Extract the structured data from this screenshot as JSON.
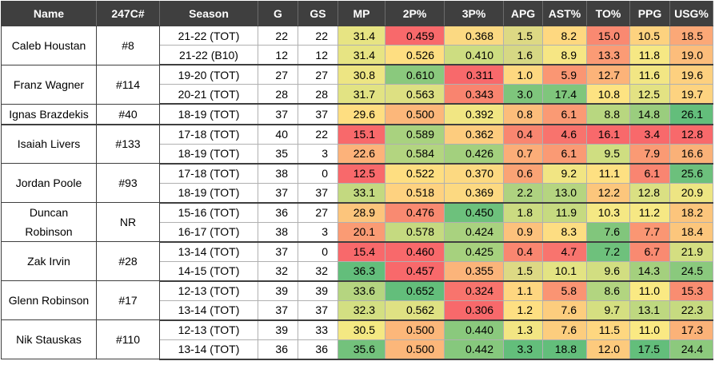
{
  "columns": [
    "Name",
    "247C#",
    "Season",
    "G",
    "GS",
    "MP",
    "2P%",
    "3P%",
    "APG",
    "AST%",
    "TO%",
    "PPG",
    "USG%"
  ],
  "players": [
    {
      "name": "Caleb Houstan",
      "rank": "#8",
      "seasons": [
        {
          "season": "21-22 (TOT)",
          "g": "22",
          "gs": "22",
          "mp": "31.4",
          "p2": "0.459",
          "p3": "0.368",
          "apg": "1.5",
          "ast": "8.2",
          "to": "15.0",
          "ppg": "10.5",
          "usg": "18.5",
          "colors": {
            "mp": "#e7e483",
            "p2": "#f8696b",
            "p3": "#fbd982",
            "apg": "#ddd984",
            "ast": "#fed880",
            "to": "#f98971",
            "ppg": "#fdd27f",
            "usg": "#fba877"
          }
        },
        {
          "season": "21-22 (B10)",
          "g": "12",
          "gs": "12",
          "mp": "31.4",
          "p2": "0.526",
          "p3": "0.410",
          "apg": "1.6",
          "ast": "8.9",
          "to": "13.3",
          "ppg": "11.8",
          "usg": "19.0",
          "colors": {
            "mp": "#e7e483",
            "p2": "#fede81",
            "p3": "#cddd81",
            "apg": "#d6d884",
            "ast": "#f6e684",
            "to": "#fb9b75",
            "ppg": "#f6e884",
            "usg": "#fcbd7b"
          }
        }
      ]
    },
    {
      "name": "Franz Wagner",
      "rank": "#114",
      "seasons": [
        {
          "season": "19-20 (TOT)",
          "g": "27",
          "gs": "27",
          "mp": "30.8",
          "p2": "0.610",
          "p3": "0.311",
          "apg": "1.0",
          "ast": "5.9",
          "to": "12.7",
          "ppg": "11.6",
          "usg": "19.6",
          "colors": {
            "mp": "#ede583",
            "p2": "#8ac97d",
            "p3": "#f8696b",
            "apg": "#fed880",
            "ast": "#fa9673",
            "to": "#fcb379",
            "ppg": "#f2e684",
            "usg": "#fdd07f"
          }
        },
        {
          "season": "20-21 (TOT)",
          "g": "28",
          "gs": "28",
          "mp": "31.7",
          "p2": "0.563",
          "p3": "0.343",
          "apg": "3.0",
          "ast": "17.4",
          "to": "10.8",
          "ppg": "12.5",
          "usg": "19.7",
          "colors": {
            "mp": "#e2e383",
            "p2": "#dde082",
            "p3": "#f9846f",
            "apg": "#7ec57c",
            "ast": "#7fc67c",
            "to": "#fde382",
            "ppg": "#e3e283",
            "usg": "#fdd380"
          }
        }
      ]
    },
    {
      "name": "Ignas Brazdekis",
      "rank": "#40",
      "seasons": [
        {
          "season": "18-19 (TOT)",
          "g": "37",
          "gs": "37",
          "mp": "29.6",
          "p2": "0.500",
          "p3": "0.392",
          "apg": "0.8",
          "ast": "6.1",
          "to": "8.8",
          "ppg": "14.8",
          "usg": "26.1",
          "colors": {
            "mp": "#fede81",
            "p2": "#fcb77a",
            "p3": "#f1e683",
            "apg": "#fcbd7b",
            "ast": "#fa9a74",
            "to": "#b8d780",
            "ppg": "#9acd7e",
            "usg": "#63be7b"
          }
        }
      ]
    },
    {
      "name": "Isaiah Livers",
      "rank": "#133",
      "seasons": [
        {
          "season": "17-18 (TOT)",
          "g": "40",
          "gs": "22",
          "mp": "15.1",
          "p2": "0.589",
          "p3": "0.362",
          "apg": "0.4",
          "ast": "4.6",
          "to": "16.1",
          "ppg": "3.4",
          "usg": "12.8",
          "colors": {
            "mp": "#f8696b",
            "p2": "#a9d27f",
            "p3": "#fdcc7e",
            "apg": "#f98670",
            "ast": "#f8736d",
            "to": "#f8696b",
            "ppg": "#f8696b",
            "usg": "#f8696b"
          }
        },
        {
          "season": "18-19 (TOT)",
          "g": "35",
          "gs": "3",
          "mp": "22.6",
          "p2": "0.584",
          "p3": "0.426",
          "apg": "0.7",
          "ast": "6.1",
          "to": "9.5",
          "ppg": "7.9",
          "usg": "16.6",
          "colors": {
            "mp": "#fcb27a",
            "p2": "#b3d580",
            "p3": "#a3d07e",
            "apg": "#fbad78",
            "ast": "#fa9a74",
            "to": "#cfde81",
            "ppg": "#fa9a74",
            "usg": "#fab178"
          }
        }
      ]
    },
    {
      "name": "Jordan Poole",
      "rank": "#93",
      "seasons": [
        {
          "season": "17-18 (TOT)",
          "g": "38",
          "gs": "0",
          "mp": "12.5",
          "p2": "0.522",
          "p3": "0.370",
          "apg": "0.6",
          "ast": "9.2",
          "to": "11.1",
          "ppg": "6.1",
          "usg": "25.6",
          "colors": {
            "mp": "#f8696b",
            "p2": "#fede81",
            "p3": "#fcd981",
            "apg": "#faa375",
            "ast": "#f1e583",
            "to": "#fee082",
            "ppg": "#f98571",
            "usg": "#6cc07c"
          }
        },
        {
          "season": "18-19 (TOT)",
          "g": "37",
          "gs": "37",
          "mp": "33.1",
          "p2": "0.518",
          "p3": "0.369",
          "apg": "2.2",
          "ast": "13.0",
          "ast_note": "",
          "to": "12.2",
          "ppg": "12.8",
          "usg": "20.9",
          "colors": {
            "mp": "#c3d980",
            "p2": "#fed280",
            "p3": "#fcd981",
            "apg": "#aed280",
            "ast": "#b5d580",
            "to": "#fcc67c",
            "ppg": "#dae083",
            "usg": "#ede583"
          }
        }
      ]
    },
    {
      "name": "Duncan Robinson",
      "rank": "NR",
      "seasons": [
        {
          "season": "15-16 (TOT)",
          "g": "36",
          "gs": "27",
          "mp": "28.9",
          "p2": "0.476",
          "p3": "0.450",
          "apg": "1.8",
          "ast": "11.9",
          "to": "10.3",
          "ppg": "11.2",
          "usg": "18.2",
          "colors": {
            "mp": "#fcc57c",
            "p2": "#f98a71",
            "p3": "#6dc17c",
            "apg": "#cbdb81",
            "ast": "#c6da80",
            "to": "#f5e884",
            "ppg": "#f6e884",
            "usg": "#fcc57c"
          }
        },
        {
          "season": "16-17 (TOT)",
          "g": "38",
          "gs": "3",
          "mp": "20.1",
          "p2": "0.578",
          "p3": "0.424",
          "apg": "0.9",
          "ast": "8.3",
          "to": "7.6",
          "ppg": "7.7",
          "usg": "18.4",
          "colors": {
            "mp": "#fa9b74",
            "p2": "#c5da80",
            "p3": "#a9d27f",
            "apg": "#fcc17c",
            "ast": "#fddd82",
            "to": "#81c67c",
            "ppg": "#fa9673",
            "usg": "#fcc67c"
          }
        }
      ]
    },
    {
      "name": "Zak Irvin",
      "rank": "#28",
      "seasons": [
        {
          "season": "13-14 (TOT)",
          "g": "37",
          "gs": "0",
          "mp": "15.4",
          "p2": "0.460",
          "p3": "0.425",
          "apg": "0.4",
          "ast": "4.7",
          "to": "7.2",
          "ppg": "6.7",
          "usg": "21.9",
          "colors": {
            "mp": "#f8696b",
            "p2": "#f8696b",
            "p3": "#a6d17e",
            "apg": "#f98670",
            "ast": "#f8746e",
            "to": "#6ec17c",
            "ppg": "#f98a71",
            "usg": "#d4de81"
          }
        },
        {
          "season": "14-15 (TOT)",
          "g": "32",
          "gs": "32",
          "mp": "36.3",
          "p2": "0.457",
          "p3": "0.355",
          "apg": "1.5",
          "ast": "10.1",
          "to": "9.6",
          "ppg": "14.3",
          "usg": "24.5",
          "colors": {
            "mp": "#63be7b",
            "p2": "#f8696b",
            "p3": "#fbb47a",
            "apg": "#ddd984",
            "ast": "#e3e383",
            "to": "#d2de81",
            "ppg": "#a4d07e",
            "usg": "#8ac97d"
          }
        }
      ]
    },
    {
      "name": "Glenn Robinson",
      "rank": "#17",
      "seasons": [
        {
          "season": "12-13 (TOT)",
          "g": "39",
          "gs": "39",
          "mp": "33.6",
          "p2": "0.652",
          "p3": "0.324",
          "apg": "1.1",
          "ast": "5.8",
          "to": "8.6",
          "ppg": "11.0",
          "usg": "15.3",
          "colors": {
            "mp": "#b5d580",
            "p2": "#63be7b",
            "p3": "#f8746d",
            "apg": "#fed680",
            "ast": "#fa9473",
            "to": "#b2d580",
            "ppg": "#fae983",
            "usg": "#f98d71"
          }
        },
        {
          "season": "13-14 (TOT)",
          "g": "37",
          "gs": "37",
          "mp": "32.3",
          "p2": "0.562",
          "p3": "0.306",
          "apg": "1.2",
          "ast": "7.6",
          "to": "9.7",
          "ppg": "13.1",
          "usg": "22.3",
          "colors": {
            "mp": "#d3df82",
            "p2": "#dfe183",
            "p3": "#f8696b",
            "apg": "#fedf82",
            "ast": "#fccd7e",
            "to": "#d5df81",
            "ppg": "#bed880",
            "usg": "#c6da80"
          }
        }
      ]
    },
    {
      "name": "Nik Stauskas",
      "rank": "#110",
      "seasons": [
        {
          "season": "12-13 (TOT)",
          "g": "39",
          "gs": "33",
          "mp": "30.5",
          "p2": "0.500",
          "p3": "0.440",
          "apg": "1.3",
          "ast": "7.6",
          "to": "11.5",
          "ppg": "11.0",
          "usg": "17.3",
          "colors": {
            "mp": "#f4e883",
            "p2": "#fcb77a",
            "p3": "#8ac97d",
            "apg": "#f2e583",
            "ast": "#fccd7e",
            "to": "#fed780",
            "ppg": "#fae983",
            "usg": "#fbb278"
          }
        },
        {
          "season": "13-14 (TOT)",
          "g": "36",
          "gs": "36",
          "mp": "35.6",
          "p2": "0.500",
          "p3": "0.442",
          "apg": "3.3",
          "ast": "18.8",
          "to": "12.0",
          "ppg": "17.5",
          "usg": "24.4",
          "colors": {
            "mp": "#73c27c",
            "p2": "#fcb77a",
            "p3": "#86c87d",
            "apg": "#63be7b",
            "ast": "#63be7b",
            "to": "#fdca7d",
            "ppg": "#63be7b",
            "usg": "#8cc97d"
          }
        }
      ]
    }
  ]
}
